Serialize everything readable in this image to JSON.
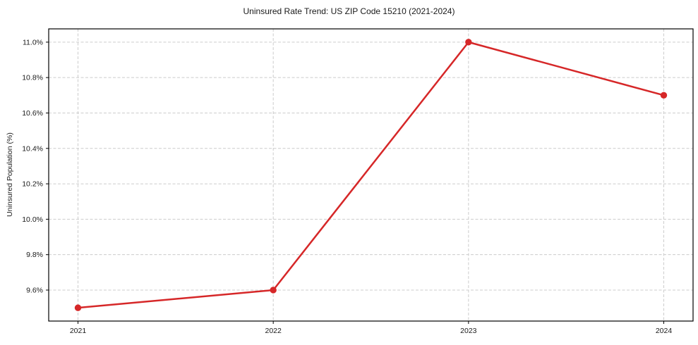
{
  "chart_data": {
    "type": "line",
    "title": "Uninsured Rate Trend: US ZIP Code 15210 (2021-2024)",
    "xlabel": "",
    "ylabel": "Uninsured Population (%)",
    "x": [
      2021,
      2022,
      2023,
      2024
    ],
    "x_tick_labels": [
      "2021",
      "2022",
      "2023",
      "2024"
    ],
    "values": [
      9.5,
      9.6,
      11.0,
      10.7
    ],
    "value_unit": "%",
    "ylim": [
      9.425,
      11.075
    ],
    "xlim": [
      2020.85,
      2024.15
    ],
    "yticks": [
      9.6,
      9.8,
      10.0,
      10.2,
      10.4,
      10.6,
      10.8,
      11.0
    ],
    "ytick_labels": [
      "9.6%",
      "9.8%",
      "10.0%",
      "10.2%",
      "10.4%",
      "10.6%",
      "10.8%",
      "11.0%"
    ],
    "grid": true,
    "grid_style": "dashed",
    "legend": "none",
    "marker": "circle",
    "colors": {
      "line": "#d62728",
      "marker": "#d62728",
      "grid": "#cccccc",
      "axis": "#000000",
      "text": "#1a1a1a",
      "background": "#ffffff"
    }
  }
}
